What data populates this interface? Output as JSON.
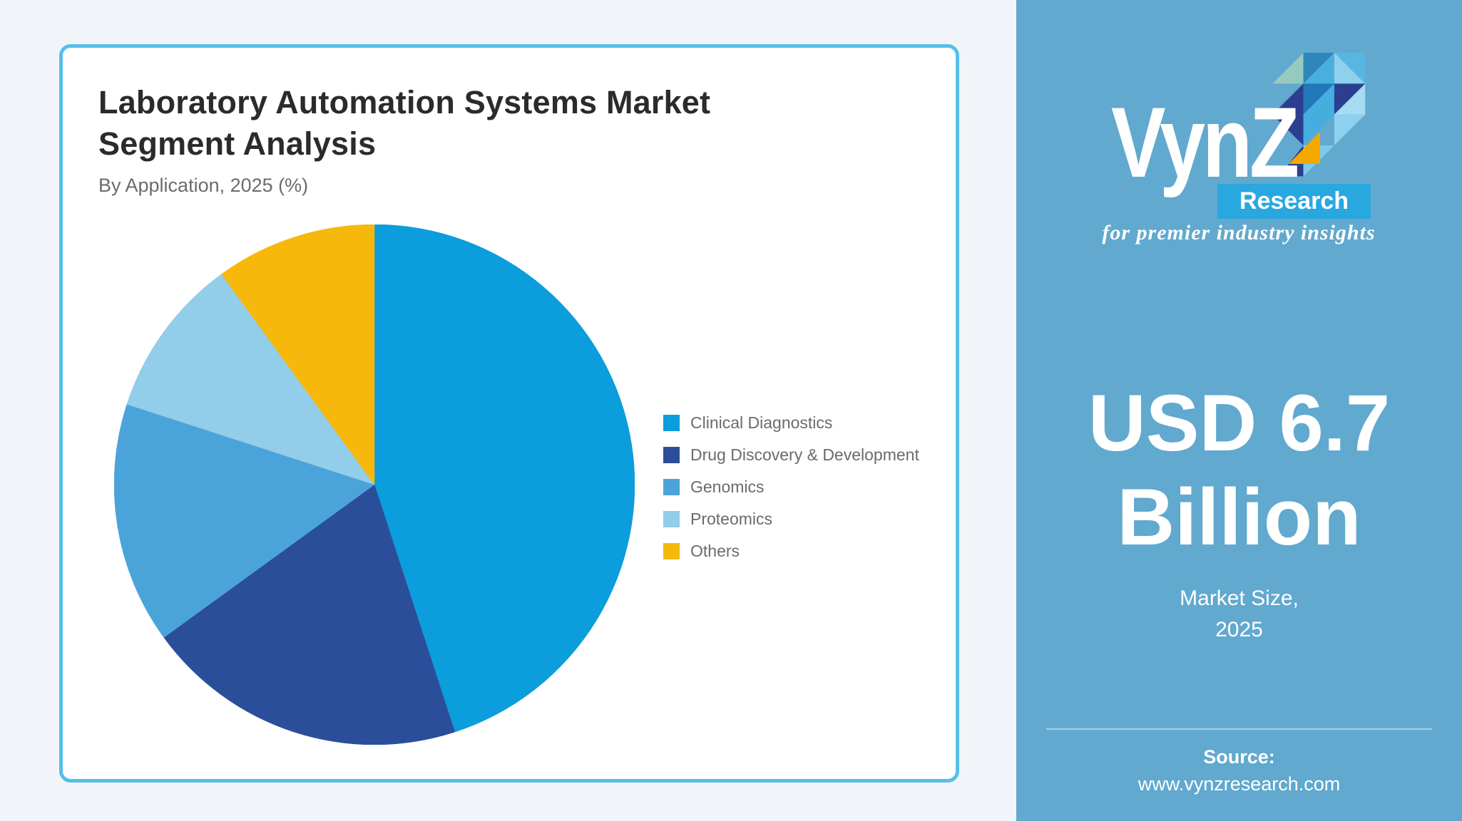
{
  "card": {
    "title_line1": "Laboratory Automation Systems Market",
    "title_line2": "Segment Analysis",
    "subtitle": "By Application, 2025 (%)"
  },
  "chart_data": {
    "type": "pie",
    "title": "Laboratory Automation Systems Market Segment Analysis",
    "subtitle": "By Application, 2025 (%)",
    "unit": "%",
    "start_angle_deg": 0,
    "direction": "clockwise",
    "legend_position": "right",
    "data_labels_shown": false,
    "segments": [
      {
        "label": "Clinical Diagnostics",
        "value": 45,
        "color": "#0C9DDC"
      },
      {
        "label": "Drug Discovery & Development",
        "value": 20,
        "color": "#2B4E9B"
      },
      {
        "label": "Genomics",
        "value": 15,
        "color": "#4BA4D9"
      },
      {
        "label": "Proteomics",
        "value": 10,
        "color": "#92CDE9"
      },
      {
        "label": "Others",
        "value": 10,
        "color": "#F7B80C"
      }
    ]
  },
  "sidebar": {
    "logo": {
      "brand": "VynZ",
      "sub": "Research",
      "tagline": "for premier industry insights"
    },
    "market_value_line1": "USD 6.7",
    "market_value_line2": "Billion",
    "market_label_line1": "Market Size,",
    "market_label_line2": "2025",
    "source_label": "Source:",
    "source_url": "www.vynzresearch.com",
    "colors": {
      "background": "#61A9CE",
      "research_badge": "#29A7DF",
      "logo_yellow": "#F5A800"
    }
  }
}
